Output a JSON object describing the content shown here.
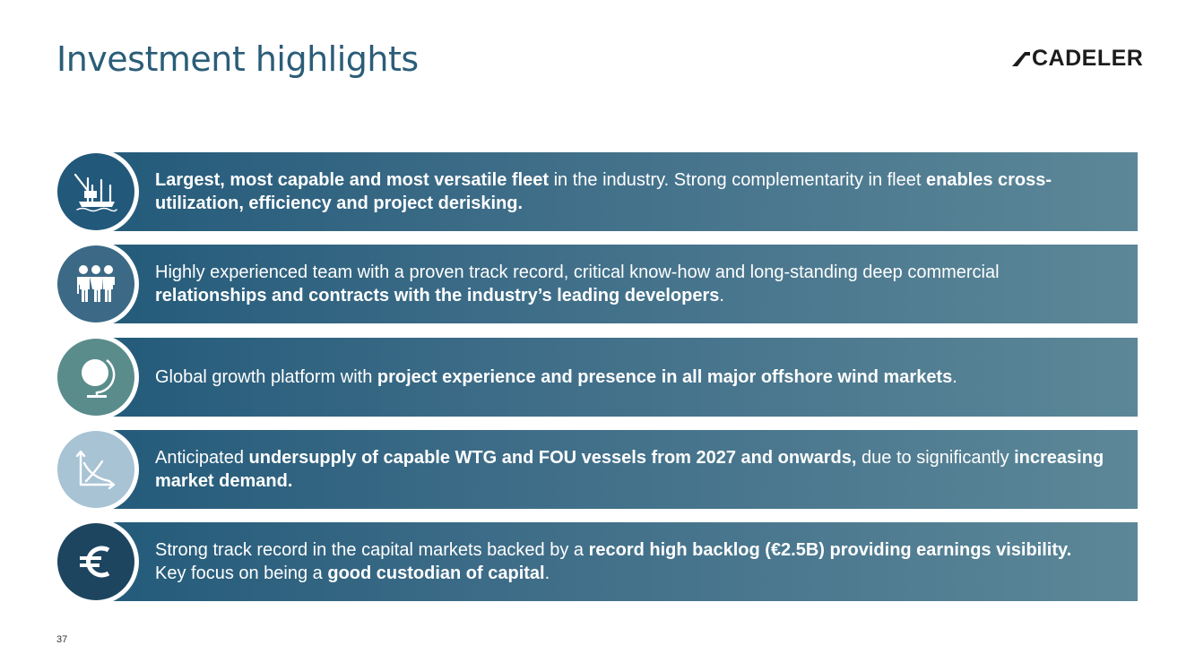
{
  "title": "Investment highlights",
  "logo": {
    "text": "CADELER"
  },
  "highlights": [
    {
      "icon": "vessel-icon",
      "circle_color": "#22587a",
      "parts": [
        {
          "text": "Largest, most capable and most versatile fleet",
          "bold": true
        },
        {
          "text": " in the industry. Strong complementarity in fleet ",
          "bold": false
        },
        {
          "text": "enables cross-utilization, efficiency and project derisking.",
          "bold": true
        }
      ]
    },
    {
      "icon": "team-icon",
      "circle_color": "#3c6986",
      "parts": [
        {
          "text": "Highly experienced team with a proven track record, critical know-how and long-standing deep commercial ",
          "bold": false
        },
        {
          "text": "relationships and contracts with the industry’s leading developers",
          "bold": true
        },
        {
          "text": ".",
          "bold": false
        }
      ]
    },
    {
      "icon": "globe-icon",
      "circle_color": "#5b8c8c",
      "parts": [
        {
          "text": "Global growth platform with ",
          "bold": false
        },
        {
          "text": "project experience and presence in all major offshore wind markets",
          "bold": true
        },
        {
          "text": ".",
          "bold": false
        }
      ]
    },
    {
      "icon": "chart-decline-icon",
      "circle_color": "#a7c3d4",
      "parts": [
        {
          "text": "Anticipated ",
          "bold": false
        },
        {
          "text": "undersupply of capable WTG and FOU vessels from 2027 and onwards,",
          "bold": true
        },
        {
          "text": " due to significantly ",
          "bold": false
        },
        {
          "text": "increasing market demand.",
          "bold": true
        }
      ]
    },
    {
      "icon": "euro-icon",
      "circle_color": "#1d4560",
      "parts": [
        {
          "text": "Strong track record in the capital markets backed by a ",
          "bold": false
        },
        {
          "text": "record high backlog (€2.5B) providing earnings visibility.",
          "bold": true
        },
        {
          "text": " Key focus on being a ",
          "bold": false
        },
        {
          "text": "good custodian of capital",
          "bold": true
        },
        {
          "text": ".",
          "bold": false
        }
      ]
    }
  ],
  "page_number": "37"
}
